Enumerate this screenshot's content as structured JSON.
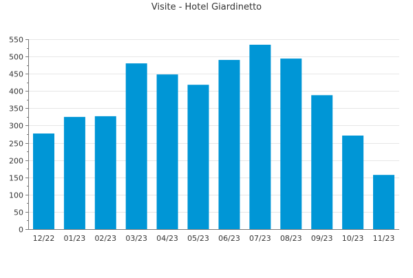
{
  "colors": {
    "bar": "#0096d6",
    "grid": "#e6e6e6",
    "axis": "#777777",
    "text": "#333333"
  },
  "chart_data": {
    "type": "bar",
    "title": "Visite - Hotel Giardinetto",
    "xlabel": "",
    "ylabel": "",
    "categories": [
      "12/22",
      "01/23",
      "02/23",
      "03/23",
      "04/23",
      "05/23",
      "06/23",
      "07/23",
      "08/23",
      "09/23",
      "10/23",
      "11/23"
    ],
    "values": [
      277,
      325,
      327,
      480,
      448,
      418,
      490,
      534,
      494,
      388,
      271,
      157
    ],
    "ylim": [
      0,
      550
    ],
    "yticks": [
      "0",
      "50",
      "100",
      "150",
      "200",
      "250",
      "300",
      "350",
      "400",
      "450",
      "500",
      "550"
    ],
    "grid": true,
    "legend": "none"
  }
}
